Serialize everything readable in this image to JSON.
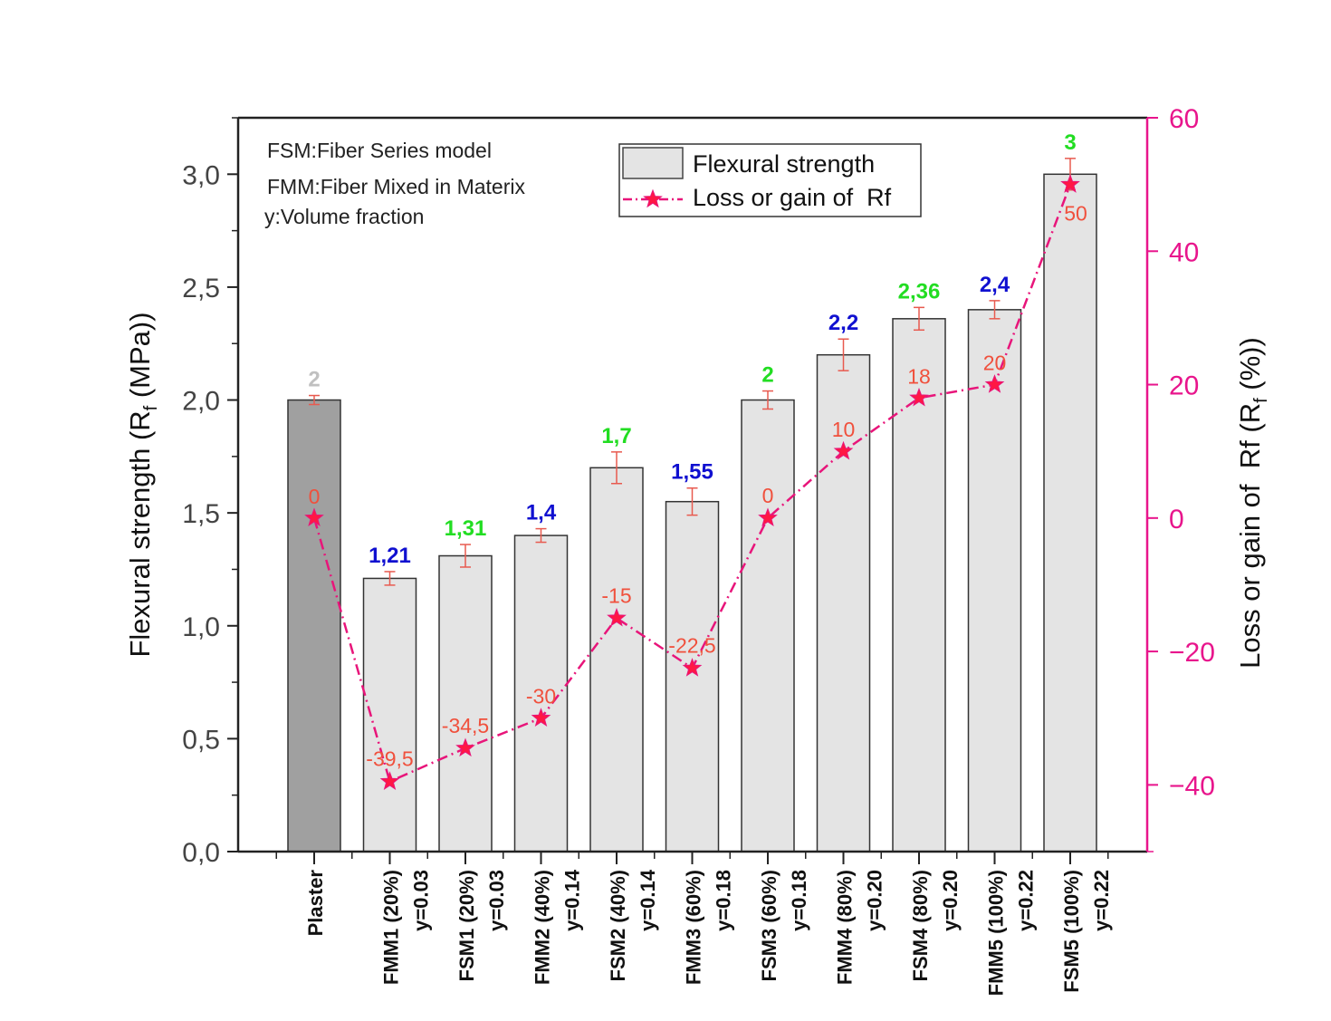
{
  "chart_data": {
    "type": "bar",
    "categories": [
      [
        "Plaster"
      ],
      [
        "FMM1 (20%)",
        "y=0.03"
      ],
      [
        "FSM1 (20%)",
        "y=0.03"
      ],
      [
        "FMM2 (40%)",
        "y=0.14"
      ],
      [
        "FSM2 (40%)",
        "y=0.14"
      ],
      [
        "FMM3 (60%)",
        "y=0.18"
      ],
      [
        "FSM3 (60%)",
        "y=0.18"
      ],
      [
        "FMM4 (80%)",
        "y=0.20"
      ],
      [
        "FSM4 (80%)",
        "y=0.20"
      ],
      [
        "FMM5 (100%)",
        "y=0.22"
      ],
      [
        "FSM5 (100%)",
        "y=0.22"
      ]
    ],
    "series": [
      {
        "name": "Flexural strength",
        "axis": "left",
        "type": "bar",
        "values": [
          2.0,
          1.21,
          1.31,
          1.4,
          1.7,
          1.55,
          2.0,
          2.2,
          2.36,
          2.4,
          3.0
        ],
        "errors": [
          0.02,
          0.03,
          0.05,
          0.03,
          0.07,
          0.06,
          0.04,
          0.07,
          0.05,
          0.04,
          0.07
        ],
        "labels": [
          "2",
          "1,21",
          "1,31",
          "1,4",
          "1,7",
          "1,55",
          "2",
          "2,2",
          "2,36",
          "2,4",
          "3"
        ],
        "label_colors": [
          "#c0c0c0",
          "#1010d0",
          "#22dd22",
          "#1010d0",
          "#22dd22",
          "#1010d0",
          "#22dd22",
          "#1010d0",
          "#22dd22",
          "#1010d0",
          "#22dd22"
        ],
        "fill_colors": [
          "#a0a0a0",
          "#e4e4e4",
          "#e4e4e4",
          "#e4e4e4",
          "#e4e4e4",
          "#e4e4e4",
          "#e4e4e4",
          "#e4e4e4",
          "#e4e4e4",
          "#e4e4e4",
          "#e4e4e4"
        ]
      },
      {
        "name": "Loss or gain of  Rf",
        "axis": "right",
        "type": "line",
        "values": [
          0,
          -39.5,
          -34.5,
          -30,
          -15,
          -22.5,
          0,
          10,
          18,
          20,
          50
        ],
        "labels": [
          "0",
          "-39,5",
          "-34,5",
          "-30",
          "-15",
          "-22,5",
          "0",
          "10",
          "18",
          "20",
          "50"
        ]
      }
    ],
    "left_axis": {
      "label": "Flexural strength (R",
      "label_sub": "f",
      "label_tail": " (MPa))",
      "range": [
        0,
        3.25
      ],
      "ticks": [
        "0,0",
        "0,5",
        "1,0",
        "1,5",
        "2,0",
        "2,5",
        "3,0"
      ],
      "tick_values": [
        0,
        0.5,
        1.0,
        1.5,
        2.0,
        2.5,
        3.0
      ]
    },
    "right_axis": {
      "label": "Loss or gain of  Rf (R",
      "label_sub": "f",
      "label_tail": " (%))",
      "range": [
        -50,
        60
      ],
      "ticks": [
        "−40",
        "−20",
        "0",
        "20",
        "40",
        "60"
      ],
      "tick_values": [
        -40,
        -20,
        0,
        20,
        40,
        60
      ]
    },
    "notes": [
      "FSM:Fiber Series model",
      "FMM:Fiber Mixed in Materix",
      "y:Volume fraction"
    ],
    "legend": {
      "placement": "top-center",
      "entries": [
        "Flexural strength",
        "Loss or gain of  Rf"
      ]
    },
    "colors": {
      "line": "#e8157a",
      "marker": "#ff1744",
      "errorbar": "#e85a4f",
      "line_labels": "#f0503c",
      "right_axis": "#e8158c",
      "left_axis": "#333333",
      "tick_text": "#444444"
    }
  }
}
